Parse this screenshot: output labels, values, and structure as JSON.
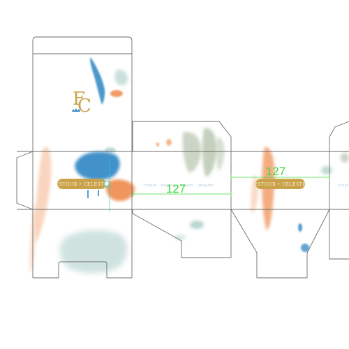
{
  "colors": {
    "outline": "#6b6b6b",
    "gold": "#c9a24a",
    "pill_text": "#fbf3dc",
    "dimension": "#3cdc3c",
    "guide": "#2fd3c9",
    "blue": "#2f86c4",
    "orange": "#ef8a4b",
    "sage": "#b7c4ad",
    "mint": "#a9ccc6"
  },
  "logo": {
    "letter_f": "F",
    "letter_c": "C"
  },
  "labels": {
    "pill_left": "ESTOUR • CELESTE",
    "pill_right": "ESTOUR • CELESTE",
    "tagline_center": "create · inspire · dream · imagine",
    "tagline_right": "create"
  },
  "dimensions": {
    "left_width": "127",
    "right_width": "127"
  },
  "icons": {
    "crown": "crown-icon",
    "selection_handle": "selection-handle-icon"
  }
}
